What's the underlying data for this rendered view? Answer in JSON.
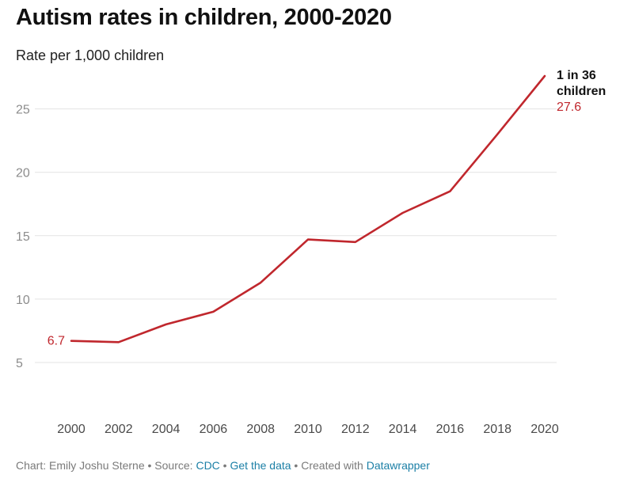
{
  "header": {
    "title": "Autism rates in children, 2000-2020",
    "subtitle": "Rate per 1,000 children"
  },
  "chart_data": {
    "type": "line",
    "title": "Autism rates in children, 2000-2020",
    "subtitle": "Rate per 1,000 children",
    "xlabel": "",
    "ylabel": "",
    "x": [
      2000,
      2002,
      2004,
      2006,
      2008,
      2010,
      2012,
      2014,
      2016,
      2018,
      2020
    ],
    "series": [
      {
        "values": [
          6.7,
          6.6,
          8.0,
          9.0,
          11.3,
          14.7,
          14.5,
          16.8,
          18.5,
          23.0,
          27.6
        ],
        "color": "#c0272d"
      }
    ],
    "y_ticks": [
      5,
      10,
      15,
      20,
      25
    ],
    "ylim": [
      2.5,
      27.6
    ],
    "xlim": [
      2000,
      2020
    ],
    "grid": true,
    "annotations": {
      "start_value_label": "6.7",
      "end_label_line1": "1 in 36",
      "end_label_line2": "children",
      "end_value_label": "27.6"
    }
  },
  "colors": {
    "line": "#c0272d",
    "grid": "#e3e3e3",
    "link": "#1b7fa6"
  },
  "footer": {
    "prefix": "Chart: Emily Joshu Sterne • Source: ",
    "source_link": "CDC",
    "sep1": " • ",
    "data_link": "Get the data",
    "sep2": " • Created with ",
    "tool_link": "Datawrapper"
  }
}
